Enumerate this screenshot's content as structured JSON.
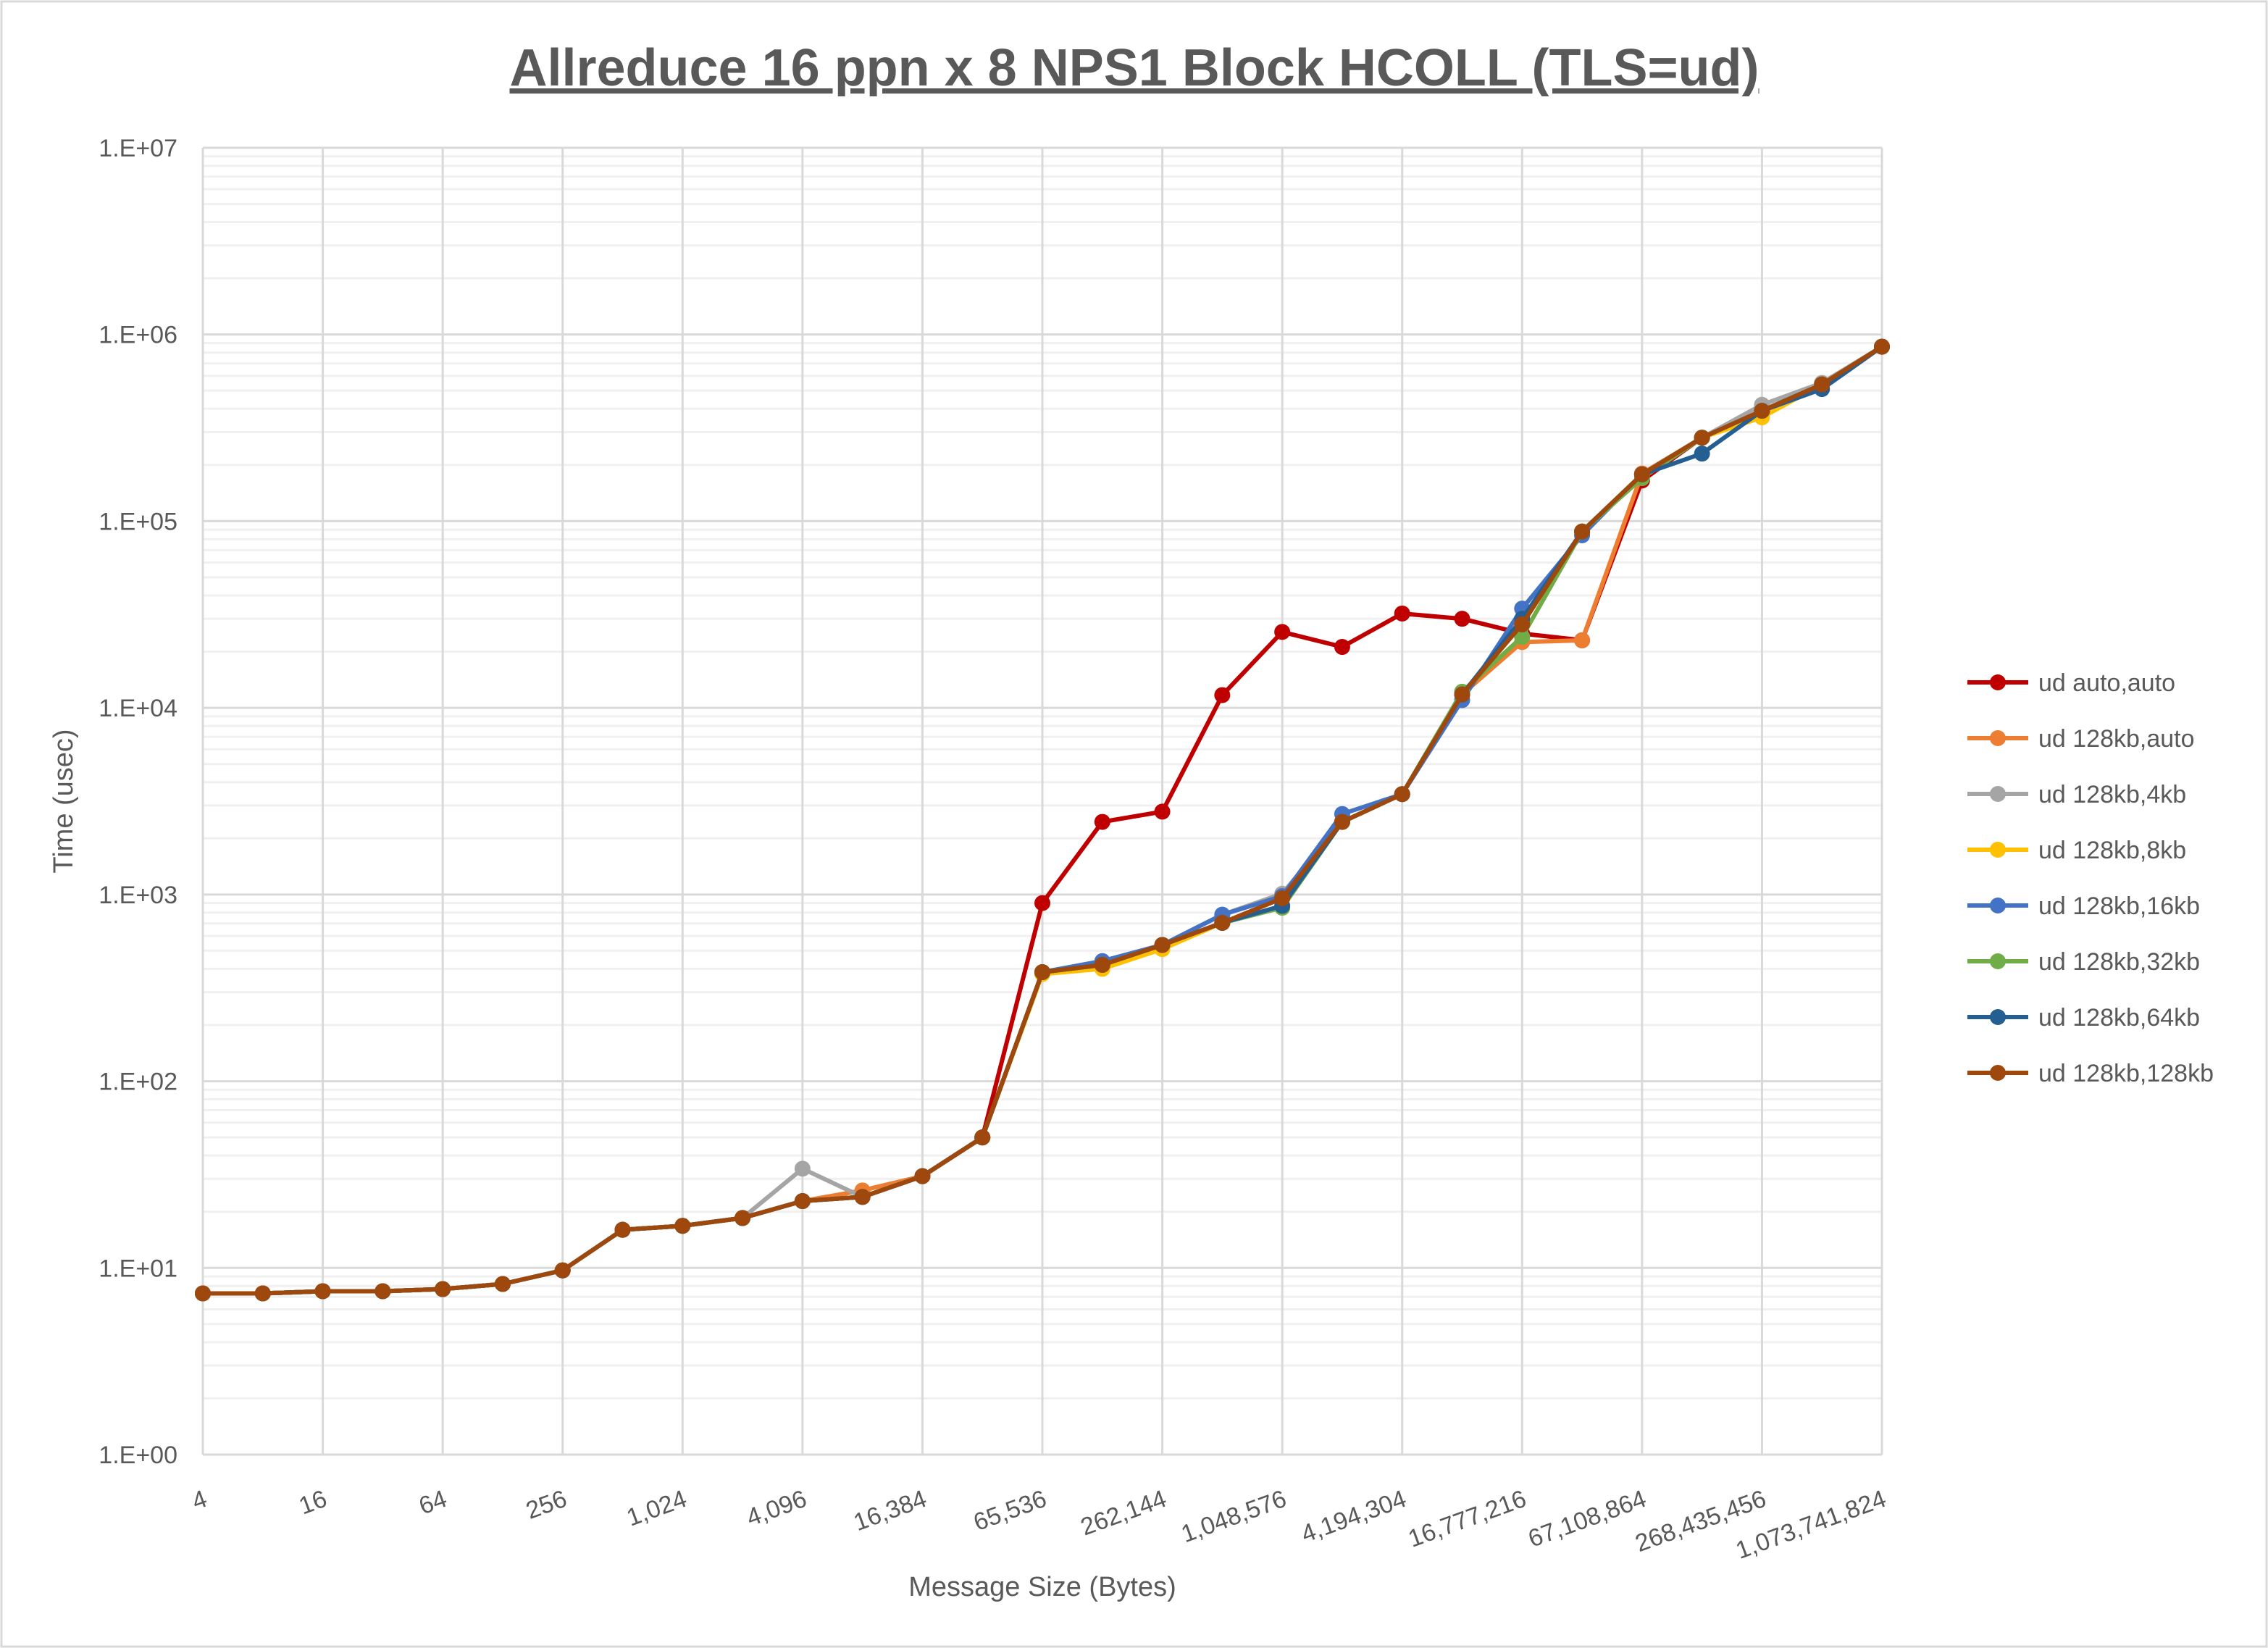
{
  "chart_data": {
    "type": "line",
    "title": "Allreduce 16 ppn x 8 NPS1 Block HCOLL (TLS=ud)",
    "xlabel": "Message Size (Bytes)",
    "ylabel": "Time (usec)",
    "xscale": "log2",
    "yscale": "log10",
    "ylim": [
      1,
      10000000
    ],
    "grid": true,
    "legend_position": "right",
    "x": [
      4,
      8,
      16,
      32,
      64,
      128,
      256,
      512,
      1024,
      2048,
      4096,
      8192,
      16384,
      32768,
      65536,
      131072,
      262144,
      524288,
      1048576,
      2097152,
      4194304,
      8388608,
      16777216,
      33554432,
      67108864,
      134217728,
      268435456,
      536870912,
      1073741824
    ],
    "x_tick_labels": [
      "4",
      "16",
      "64",
      "256",
      "1,024",
      "4,096",
      "16,384",
      "65,536",
      "262,144",
      "1,048,576",
      "4,194,304",
      "16,777,216",
      "67,108,864",
      "268,435,456",
      "1,073,741,824"
    ],
    "y_tick_labels": [
      "1.E+00",
      "1.E+01",
      "1.E+02",
      "1.E+03",
      "1.E+04",
      "1.E+05",
      "1.E+06",
      "1.E+07"
    ],
    "series": [
      {
        "name": "ud auto,auto",
        "color": "#C00000",
        "values": [
          7.3,
          7.3,
          7.5,
          7.5,
          7.7,
          8.2,
          9.7,
          16,
          16.8,
          18.5,
          22.8,
          24,
          31,
          50,
          900,
          2450,
          2780,
          11700,
          25500,
          21200,
          32000,
          30000,
          25000,
          23000,
          165000,
          280000,
          390000,
          540000,
          860000
        ]
      },
      {
        "name": "ud 128kb,auto",
        "color": "#ED7D31",
        "values": [
          7.3,
          7.3,
          7.5,
          7.5,
          7.7,
          8.2,
          9.7,
          16,
          16.8,
          18.5,
          22.8,
          26,
          31,
          50,
          384,
          420,
          537,
          705,
          955,
          2450,
          3450,
          11800,
          22500,
          23000,
          180000,
          280000,
          390000,
          540000,
          860000
        ]
      },
      {
        "name": "ud 128kb,4kb",
        "color": "#A5A5A5",
        "values": [
          7.3,
          7.3,
          7.5,
          7.5,
          7.7,
          8.2,
          9.7,
          16,
          16.8,
          18.5,
          34,
          24,
          31,
          50,
          384,
          440,
          537,
          780,
          1010,
          2450,
          3450,
          11800,
          28000,
          88000,
          178000,
          280000,
          420000,
          550000,
          860000
        ]
      },
      {
        "name": "ud 128kb,8kb",
        "color": "#FFC000",
        "values": [
          7.3,
          7.3,
          7.5,
          7.5,
          7.7,
          8.2,
          9.7,
          16,
          16.8,
          18.5,
          22.8,
          24,
          31,
          50,
          375,
          400,
          510,
          705,
          955,
          2450,
          3450,
          11800,
          28000,
          88000,
          178000,
          280000,
          360000,
          540000,
          860000
        ]
      },
      {
        "name": "ud 128kb,16kb",
        "color": "#4472C4",
        "values": [
          7.3,
          7.3,
          7.5,
          7.5,
          7.7,
          8.2,
          9.7,
          16,
          16.8,
          18.5,
          22.8,
          24,
          31,
          50,
          384,
          440,
          537,
          780,
          980,
          2700,
          3450,
          11000,
          34000,
          84000,
          178000,
          280000,
          390000,
          540000,
          860000
        ]
      },
      {
        "name": "ud 128kb,32kb",
        "color": "#70AD47",
        "values": [
          7.3,
          7.3,
          7.5,
          7.5,
          7.7,
          8.2,
          9.7,
          16,
          16.8,
          18.5,
          22.8,
          24,
          31,
          50,
          384,
          420,
          537,
          705,
          850,
          2450,
          3450,
          12200,
          24000,
          88000,
          170000,
          280000,
          390000,
          540000,
          860000
        ]
      },
      {
        "name": "ud 128kb,64kb",
        "color": "#255E91",
        "values": [
          7.3,
          7.3,
          7.5,
          7.5,
          7.7,
          8.2,
          9.7,
          16,
          16.8,
          18.5,
          22.8,
          24,
          31,
          50,
          384,
          420,
          537,
          705,
          870,
          2450,
          3450,
          11800,
          30000,
          88000,
          178000,
          230000,
          390000,
          510000,
          860000
        ]
      },
      {
        "name": "ud 128kb,128kb",
        "color": "#9E480E",
        "values": [
          7.3,
          7.3,
          7.5,
          7.5,
          7.7,
          8.2,
          9.7,
          16,
          16.8,
          18.5,
          22.8,
          24,
          31,
          50,
          384,
          420,
          537,
          705,
          955,
          2450,
          3450,
          11800,
          28000,
          88000,
          178000,
          280000,
          390000,
          540000,
          860000
        ]
      }
    ]
  }
}
